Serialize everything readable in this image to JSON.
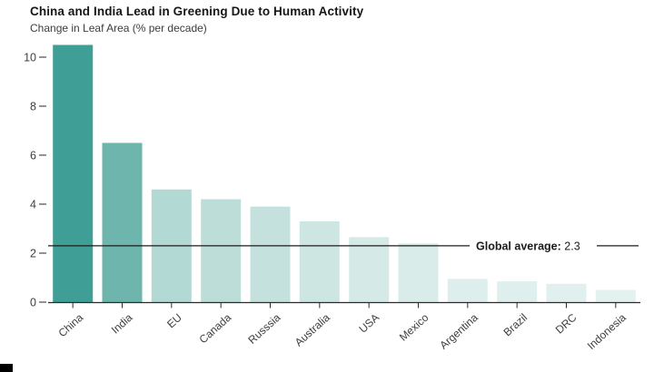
{
  "chart_data": {
    "type": "bar",
    "title": "China and India Lead in Greening Due to Human Activity",
    "subtitle": "Change in Leaf Area (% per decade)",
    "categories": [
      "China",
      "India",
      "EU",
      "Canada",
      "Russsia",
      "Australia",
      "USA",
      "Mexico",
      "Argentina",
      "Brazil",
      "DRC",
      "Indonesia"
    ],
    "values": [
      10.5,
      6.5,
      4.6,
      4.2,
      3.9,
      3.3,
      2.65,
      2.4,
      0.95,
      0.85,
      0.75,
      0.5
    ],
    "bar_colors": [
      "#3f9e96",
      "#6db5ad",
      "#b3d9d4",
      "#bcddd8",
      "#c5e1dd",
      "#cee6e2",
      "#d5eae7",
      "#d9ece9",
      "#ddeeec",
      "#dfefed",
      "#e1f0ee",
      "#e3f1ef"
    ],
    "xlabel": "",
    "ylabel": "Change in Leaf Area (% per decade)",
    "ylim": [
      0,
      10.8
    ],
    "y_ticks": [
      0,
      2,
      4,
      6,
      8,
      10
    ],
    "grid": false,
    "legend": "none",
    "global_average": {
      "label": "Global average:",
      "value": 2.3,
      "display": "2.3"
    },
    "colors": {
      "axis": "#2b2b2b",
      "tick_text": "#3f3f3f",
      "title_text": "#161616",
      "average_line": "#1c1c1c",
      "background": "#ffffff",
      "corner_mark": "#000000"
    }
  }
}
